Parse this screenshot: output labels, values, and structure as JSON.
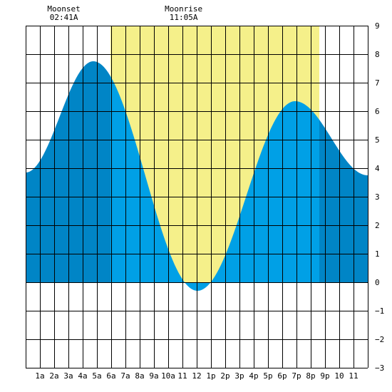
{
  "chart_data": {
    "type": "area",
    "title": "",
    "xlabel": "",
    "ylabel": "",
    "x_ticks": [
      {
        "hour": 1,
        "label": "1a"
      },
      {
        "hour": 2,
        "label": "2a"
      },
      {
        "hour": 3,
        "label": "3a"
      },
      {
        "hour": 4,
        "label": "4a"
      },
      {
        "hour": 5,
        "label": "5a"
      },
      {
        "hour": 6,
        "label": "6a"
      },
      {
        "hour": 7,
        "label": "7a"
      },
      {
        "hour": 8,
        "label": "8a"
      },
      {
        "hour": 9,
        "label": "9a"
      },
      {
        "hour": 10,
        "label": "10a"
      },
      {
        "hour": 11,
        "label": "11"
      },
      {
        "hour": 12,
        "label": "12"
      },
      {
        "hour": 13,
        "label": "1p"
      },
      {
        "hour": 14,
        "label": "2p"
      },
      {
        "hour": 15,
        "label": "3p"
      },
      {
        "hour": 16,
        "label": "4p"
      },
      {
        "hour": 17,
        "label": "5p"
      },
      {
        "hour": 18,
        "label": "6p"
      },
      {
        "hour": 19,
        "label": "7p"
      },
      {
        "hour": 20,
        "label": "8p"
      },
      {
        "hour": 21,
        "label": "9p"
      },
      {
        "hour": 22,
        "label": "10"
      },
      {
        "hour": 23,
        "label": "11"
      }
    ],
    "xlim": [
      0,
      24
    ],
    "ylim": [
      -3,
      9
    ],
    "y_ticks": [
      "9",
      "8",
      "7",
      "6",
      "5",
      "4",
      "3",
      "2",
      "1",
      "0",
      "−1",
      "−2",
      "−3"
    ],
    "grid": true,
    "tide_points": [
      {
        "hour": 0,
        "height": 3.85
      },
      {
        "hour": 4.75,
        "height": 7.75
      },
      {
        "hour": 12.05,
        "height": -0.3
      },
      {
        "hour": 18.9,
        "height": 6.35
      },
      {
        "hour": 24,
        "height": 3.75
      }
    ],
    "daylight": [
      5.95,
      20.6
    ],
    "moon_events": [
      {
        "name": "Moonset",
        "time": "02:41A",
        "hour": 2.68
      },
      {
        "name": "Moonrise",
        "time": "11:05A",
        "hour": 11.08
      }
    ],
    "colors": {
      "night_tide": "#0085c6",
      "day_tide": "#00a0e6",
      "daylight": "#f5f08a",
      "grid": "#000000",
      "background": "#ffffff"
    }
  }
}
